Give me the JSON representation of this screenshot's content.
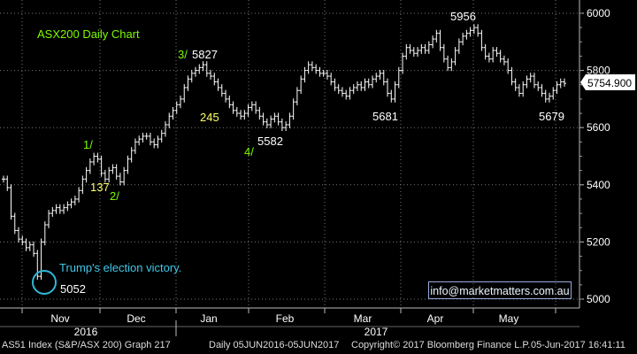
{
  "chart_data": {
    "type": "line",
    "title": "ASX200 Daily Chart",
    "ylim": [
      4960,
      6040
    ],
    "y_ticks": [
      "6000",
      "5800",
      "5600",
      "5400",
      "5200",
      "5000"
    ],
    "x_month_labels": [
      "Nov",
      "Dec",
      "Jan",
      "Feb",
      "Mar",
      "Apr",
      "May"
    ],
    "x_year_labels": [
      "2016",
      "2017"
    ],
    "last_value_label": "5754.900",
    "series": [
      {
        "values": [
          5420,
          5390,
          5290,
          5240,
          5210,
          5200,
          5180,
          5190,
          5160,
          5080,
          5200,
          5260,
          5300,
          5310,
          5320,
          5310,
          5320,
          5330,
          5340,
          5350,
          5380,
          5420,
          5450,
          5480,
          5500,
          5490,
          5440,
          5420,
          5450,
          5460,
          5430,
          5410,
          5450,
          5490,
          5520,
          5550,
          5560,
          5570,
          5570,
          5550,
          5540,
          5560,
          5580,
          5610,
          5640,
          5660,
          5680,
          5700,
          5740,
          5770,
          5790,
          5800,
          5810,
          5820,
          5790,
          5780,
          5760,
          5740,
          5720,
          5700,
          5680,
          5660,
          5650,
          5640,
          5650,
          5670,
          5680,
          5660,
          5640,
          5620,
          5610,
          5630,
          5640,
          5620,
          5600,
          5610,
          5640,
          5690,
          5730,
          5770,
          5800,
          5820,
          5810,
          5800,
          5790,
          5790,
          5780,
          5760,
          5740,
          5730,
          5720,
          5710,
          5730,
          5740,
          5750,
          5740,
          5760,
          5750,
          5770,
          5780,
          5790,
          5760,
          5720,
          5700,
          5750,
          5800,
          5850,
          5880,
          5870,
          5860,
          5870,
          5880,
          5870,
          5890,
          5910,
          5930,
          5880,
          5840,
          5810,
          5830,
          5870,
          5900,
          5920,
          5930,
          5940,
          5950,
          5930,
          5880,
          5850,
          5840,
          5870,
          5860,
          5840,
          5830,
          5800,
          5760,
          5740,
          5720,
          5750,
          5770,
          5780,
          5750,
          5740,
          5720,
          5700,
          5710,
          5730,
          5750,
          5760,
          5755
        ]
      }
    ],
    "annotations": {
      "wave_1": "1/",
      "wave_2": "2/",
      "wave_3": "3/",
      "wave_4": "4/",
      "gain_137": "137",
      "drop_245": "245",
      "low_5052": "5052",
      "high_5827": "5827",
      "low_5582": "5582",
      "low_5681": "5681",
      "high_5956": "5956",
      "low_5679": "5679",
      "election": "Trump's election victory."
    },
    "colors": {
      "background": "#000000",
      "bars": "#ffffff",
      "title": "#7CFC00",
      "wave_labels": "#7CFC00",
      "point_labels": "#ffff66",
      "circle": "#2fb8d8",
      "election_text": "#40c8e8",
      "last_price_box": "#ffffff"
    }
  },
  "website_label": "info@marketmatters.com.au",
  "footer": {
    "left": "AS51 Index (S&P/ASX 200) Graph 217",
    "middle_range": "Daily 05JUN2016-05JUN2017",
    "copyright": "Copyright© 2017 Bloomberg Finance L.P.",
    "timestamp": "05-Jun-2017  16:41:11"
  }
}
